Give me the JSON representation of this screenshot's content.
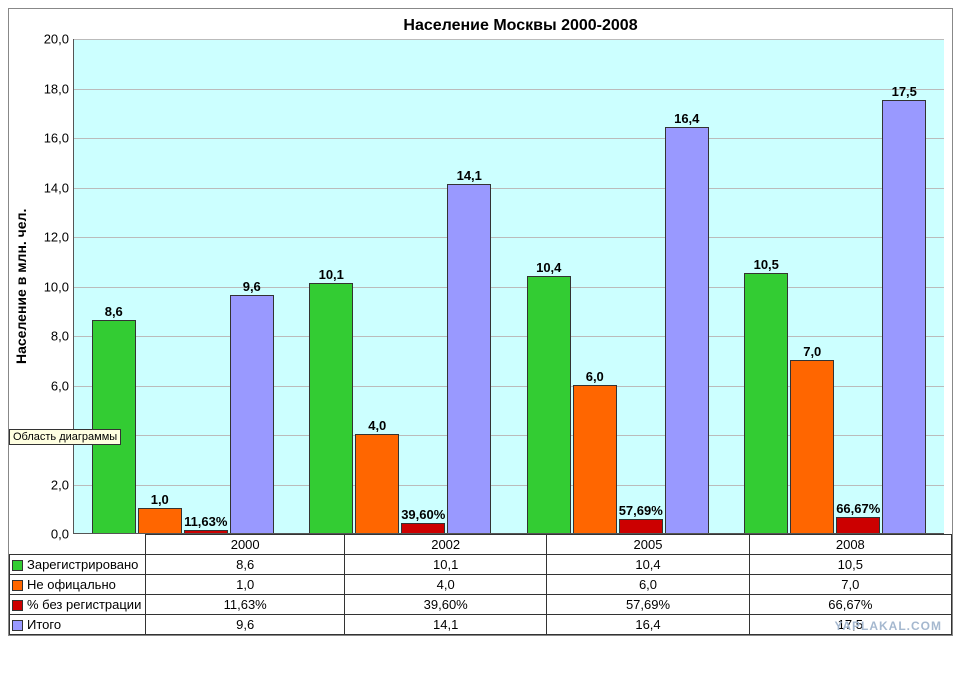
{
  "chart": {
    "title": "Население Москвы 2000-2008",
    "ylabel": "Население в млн. чел.",
    "type": "bar",
    "categories": [
      "2000",
      "2002",
      "2005",
      "2008"
    ],
    "series": [
      {
        "name": "Зарегистрировано",
        "color": "#33cc33",
        "values": [
          8.6,
          10.1,
          10.4,
          10.5
        ],
        "labels": [
          "8,6",
          "10,1",
          "10,4",
          "10,5"
        ],
        "table": [
          "8,6",
          "10,1",
          "10,4",
          "10,5"
        ]
      },
      {
        "name": "Не офицально",
        "color": "#ff6600",
        "values": [
          1.0,
          4.0,
          6.0,
          7.0
        ],
        "labels": [
          "1,0",
          "4,0",
          "6,0",
          "7,0"
        ],
        "table": [
          "1,0",
          "4,0",
          "6,0",
          "7,0"
        ]
      },
      {
        "name": "% без регистрации",
        "color": "#cc0000",
        "values": [
          0.1163,
          0.396,
          0.5769,
          0.6667
        ],
        "labels": [
          "11,63%",
          "39,60%",
          "57,69%",
          "66,67%"
        ],
        "table": [
          "11,63%",
          "39,60%",
          "57,69%",
          "66,67%"
        ]
      },
      {
        "name": "Итого",
        "color": "#9999ff",
        "values": [
          9.6,
          14.1,
          16.4,
          17.5
        ],
        "labels": [
          "9,6",
          "14,1",
          "16,4",
          "17,5"
        ],
        "table": [
          "9,6",
          "14,1",
          "16,4",
          "17,5"
        ]
      }
    ],
    "ylim": [
      0,
      20
    ],
    "ytick_step": 2,
    "yticks": [
      "0,0",
      "2,0",
      "4,0",
      "6,0",
      "8,0",
      "10,0",
      "12,0",
      "14,0",
      "16,0",
      "18,0",
      "20,0"
    ],
    "plot_bg": "#ccffff",
    "grid_color": "#bbbbbb",
    "bar_border": "#333333",
    "title_fontsize": 16,
    "label_fontsize": 13,
    "tooltip": "Область диаграммы",
    "watermark": "YAPLAKAL.COM",
    "legend_col_width": 130
  }
}
